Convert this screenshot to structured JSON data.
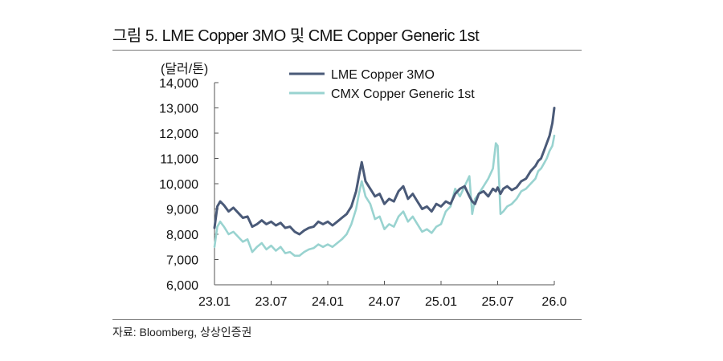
{
  "figure": {
    "title": "그림 5. LME Copper 3MO 및 CME Copper Generic 1st",
    "source": "자료: Bloomberg, 상상인증권"
  },
  "chart_data": {
    "type": "line",
    "ylabel": "(달러/톤)",
    "ylim": [
      6000,
      14000
    ],
    "yticks": [
      6000,
      7000,
      8000,
      9000,
      10000,
      11000,
      12000,
      13000,
      14000
    ],
    "ytick_labels": [
      "6,000",
      "7,000",
      "8,000",
      "9,000",
      "10,000",
      "11,000",
      "12,000",
      "13,000",
      "14,000"
    ],
    "xlim": [
      0,
      36
    ],
    "xticks": [
      0,
      6,
      12,
      18,
      24,
      30,
      36
    ],
    "xtick_labels": [
      "23.01",
      "23.07",
      "24.01",
      "24.07",
      "25.01",
      "25.07",
      "26.0"
    ],
    "legend_position": "top-center",
    "series": [
      {
        "name": "LME Copper 3MO",
        "color": "#4a5a78",
        "x": [
          0,
          0.3,
          0.6,
          1,
          1.5,
          2,
          2.5,
          3,
          3.5,
          4,
          4.5,
          5,
          5.5,
          6,
          6.5,
          7,
          7.5,
          8,
          8.5,
          9,
          9.5,
          10,
          10.5,
          11,
          11.5,
          12,
          12.5,
          13,
          13.5,
          14,
          14.5,
          15,
          15.3,
          15.6,
          16,
          16.5,
          17,
          17.5,
          18,
          18.5,
          19,
          19.5,
          20,
          20.5,
          21,
          21.5,
          22,
          22.5,
          23,
          23.5,
          24,
          24.5,
          25,
          25.5,
          26,
          26.5,
          27,
          27.3,
          27.6,
          28,
          28.5,
          29,
          29.5,
          29.8,
          30,
          30.3,
          30.6,
          31,
          31.5,
          32,
          32.5,
          33,
          33.5,
          34,
          34.3,
          34.6,
          34.9,
          35.2,
          35.5,
          35.8,
          36
        ],
        "values": [
          8250,
          9100,
          9300,
          9150,
          8900,
          9050,
          8850,
          8650,
          8700,
          8300,
          8400,
          8550,
          8400,
          8500,
          8350,
          8450,
          8250,
          8300,
          8100,
          8000,
          8150,
          8250,
          8300,
          8500,
          8400,
          8500,
          8350,
          8500,
          8650,
          8800,
          9100,
          9700,
          10300,
          10850,
          10100,
          9800,
          9500,
          9600,
          9200,
          9400,
          9300,
          9700,
          9900,
          9400,
          9600,
          9300,
          9000,
          9100,
          8900,
          9200,
          9100,
          9300,
          9200,
          9600,
          9800,
          9900,
          9500,
          9300,
          9200,
          9600,
          9700,
          9500,
          9800,
          9700,
          9850,
          9600,
          9800,
          9900,
          9750,
          9850,
          10100,
          10200,
          10500,
          10700,
          10900,
          11000,
          11300,
          11600,
          11900,
          12400,
          13000
        ]
      },
      {
        "name": "CMX Copper Generic 1st",
        "color": "#99d3d0",
        "x": [
          0,
          0.3,
          0.6,
          1,
          1.5,
          2,
          2.5,
          3,
          3.5,
          4,
          4.5,
          5,
          5.5,
          6,
          6.5,
          7,
          7.5,
          8,
          8.5,
          9,
          9.5,
          10,
          10.5,
          11,
          11.5,
          12,
          12.5,
          13,
          13.5,
          14,
          14.5,
          15,
          15.3,
          15.6,
          16,
          16.5,
          17,
          17.5,
          18,
          18.5,
          19,
          19.5,
          20,
          20.5,
          21,
          21.5,
          22,
          22.5,
          23,
          23.5,
          24,
          24.5,
          25,
          25.5,
          26,
          26.5,
          27,
          27.3,
          27.6,
          28,
          28.5,
          29,
          29.5,
          29.8,
          30,
          30.3,
          30.6,
          31,
          31.5,
          32,
          32.5,
          33,
          33.5,
          34,
          34.3,
          34.6,
          34.9,
          35.2,
          35.5,
          35.8,
          36
        ],
        "values": [
          7500,
          8300,
          8500,
          8300,
          8000,
          8100,
          7900,
          7700,
          7800,
          7300,
          7500,
          7650,
          7400,
          7550,
          7350,
          7500,
          7250,
          7300,
          7150,
          7150,
          7300,
          7400,
          7450,
          7600,
          7500,
          7600,
          7500,
          7650,
          7800,
          8000,
          8400,
          9000,
          9600,
          10100,
          9500,
          9200,
          8600,
          8700,
          8200,
          8400,
          8300,
          8700,
          8900,
          8500,
          8700,
          8400,
          8100,
          8200,
          8050,
          8300,
          8400,
          8900,
          9100,
          9800,
          9500,
          9900,
          10300,
          8800,
          9400,
          9600,
          9900,
          10200,
          10600,
          11600,
          11500,
          8800,
          8900,
          9100,
          9200,
          9400,
          9700,
          9800,
          10000,
          10200,
          10500,
          10600,
          10800,
          11000,
          11300,
          11500,
          11900
        ]
      }
    ]
  }
}
